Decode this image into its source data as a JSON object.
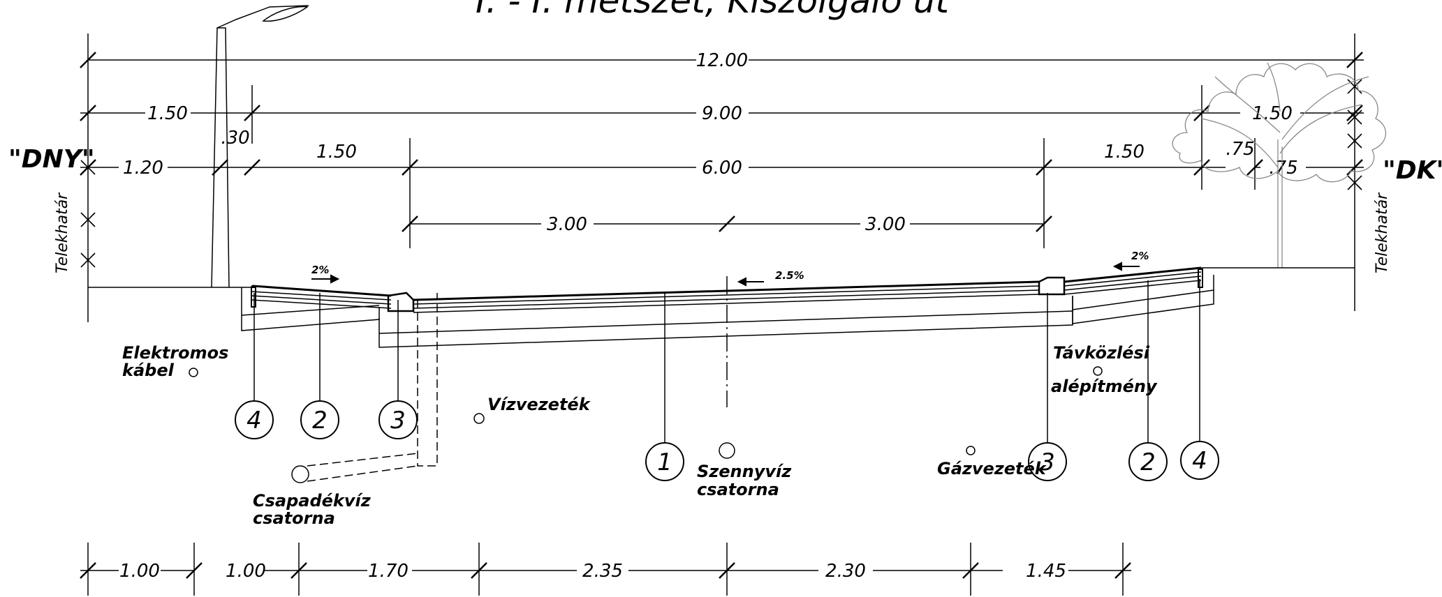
{
  "title": "I. - I. metszet, Kiszolgáló út",
  "sides": {
    "left": "\"DNY\"",
    "right": "\"DK\""
  },
  "boundary_label": "Telekhatár",
  "dimensions": {
    "total": "12.00",
    "row2": [
      "1.50",
      "9.00",
      "1.50"
    ],
    "row3": [
      ".30",
      "1.20",
      "1.50",
      "6.00",
      "1.50",
      ".75",
      ".75"
    ],
    "row4": [
      "3.00",
      "3.00"
    ],
    "bottom": [
      "1.00",
      "1.00",
      "1.70",
      "2.35",
      "2.30",
      "1.45"
    ]
  },
  "slopes": {
    "left": "2%",
    "center": "2.5%",
    "right": "2%"
  },
  "layer_markers": [
    "4",
    "2",
    "3",
    "1",
    "3",
    "2",
    "4"
  ],
  "utilities": {
    "electric": [
      "Elektromos",
      "kábel"
    ],
    "water": "Vízvezeték",
    "storm": [
      "Csapadékvíz",
      "csatorna"
    ],
    "sewer": [
      "Szennyvíz",
      "csatorna"
    ],
    "gas": "Gázvezeték",
    "telecom": [
      "Távközlési",
      "alépítmény"
    ]
  }
}
